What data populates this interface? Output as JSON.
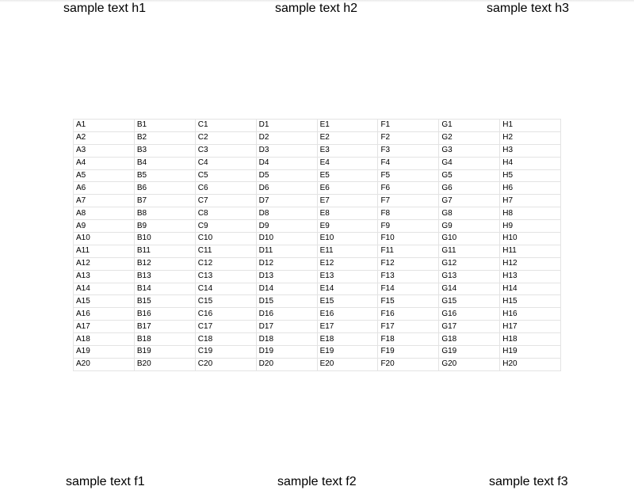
{
  "header": {
    "left": "sample text h1",
    "center": "sample text h2",
    "right": "sample text h3"
  },
  "footer": {
    "left": "sample text f1",
    "center": "sample text f2",
    "right": "sample text f3"
  },
  "table": {
    "rows": [
      [
        "A1",
        "B1",
        "C1",
        "D1",
        "E1",
        "F1",
        "G1",
        "H1"
      ],
      [
        "A2",
        "B2",
        "C2",
        "D2",
        "E2",
        "F2",
        "G2",
        "H2"
      ],
      [
        "A3",
        "B3",
        "C3",
        "D3",
        "E3",
        "F3",
        "G3",
        "H3"
      ],
      [
        "A4",
        "B4",
        "C4",
        "D4",
        "E4",
        "F4",
        "G4",
        "H4"
      ],
      [
        "A5",
        "B5",
        "C5",
        "D5",
        "E5",
        "F5",
        "G5",
        "H5"
      ],
      [
        "A6",
        "B6",
        "C6",
        "D6",
        "E6",
        "F6",
        "G6",
        "H6"
      ],
      [
        "A7",
        "B7",
        "C7",
        "D7",
        "E7",
        "F7",
        "G7",
        "H7"
      ],
      [
        "A8",
        "B8",
        "C8",
        "D8",
        "E8",
        "F8",
        "G8",
        "H8"
      ],
      [
        "A9",
        "B9",
        "C9",
        "D9",
        "E9",
        "F9",
        "G9",
        "H9"
      ],
      [
        "A10",
        "B10",
        "C10",
        "D10",
        "E10",
        "F10",
        "G10",
        "H10"
      ],
      [
        "A11",
        "B11",
        "C11",
        "D11",
        "E11",
        "F11",
        "G11",
        "H11"
      ],
      [
        "A12",
        "B12",
        "C12",
        "D12",
        "E12",
        "F12",
        "G12",
        "H12"
      ],
      [
        "A13",
        "B13",
        "C13",
        "D13",
        "E13",
        "F13",
        "G13",
        "H13"
      ],
      [
        "A14",
        "B14",
        "C14",
        "D14",
        "E14",
        "F14",
        "G14",
        "H14"
      ],
      [
        "A15",
        "B15",
        "C15",
        "D15",
        "E15",
        "F15",
        "G15",
        "H15"
      ],
      [
        "A16",
        "B16",
        "C16",
        "D16",
        "E16",
        "F16",
        "G16",
        "H16"
      ],
      [
        "A17",
        "B17",
        "C17",
        "D17",
        "E17",
        "F17",
        "G17",
        "H17"
      ],
      [
        "A18",
        "B18",
        "C18",
        "D18",
        "E18",
        "F18",
        "G18",
        "H18"
      ],
      [
        "A19",
        "B19",
        "C19",
        "D19",
        "E19",
        "F19",
        "G19",
        "H19"
      ],
      [
        "A20",
        "B20",
        "C20",
        "D20",
        "E20",
        "F20",
        "G20",
        "H20"
      ]
    ]
  }
}
